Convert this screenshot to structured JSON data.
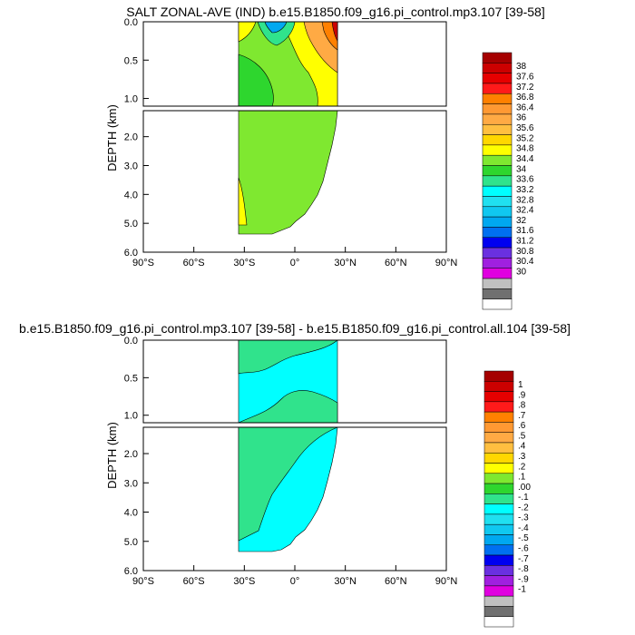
{
  "chart_data": [
    {
      "type": "heatmap",
      "title": "SALT ZONAL-AVE (IND) b.e15.B1850.f09_g16.pi_control.mp3.107 [39-58]",
      "ylabel": "DEPTH (km)",
      "x_ticks": [
        "90°S",
        "60°S",
        "30°S",
        "0°",
        "30°N",
        "60°N",
        "90°N"
      ],
      "x_range": [
        -90,
        90
      ],
      "y_upper_ticks": [
        "0.0",
        "0.5",
        "1.0"
      ],
      "y_upper_range": [
        0,
        1.1
      ],
      "y_lower_ticks": [
        "2.0",
        "3.0",
        "4.0",
        "5.0",
        "6.0"
      ],
      "y_lower_range": [
        1.1,
        6.0
      ],
      "colorbar_labels": [
        "38",
        "37.6",
        "37.2",
        "36.8",
        "36.4",
        "36",
        "35.6",
        "35.2",
        "34.8",
        "34.4",
        "34",
        "33.6",
        "33.2",
        "32.8",
        "32.4",
        "32",
        "31.6",
        "31.2",
        "30.8",
        "30.4",
        "30"
      ],
      "colorbar_colors": [
        "#a50000",
        "#cc0000",
        "#e60000",
        "#ff1a1a",
        "#ff8000",
        "#ff9933",
        "#ffaa44",
        "#ffbf40",
        "#ffd700",
        "#ffff00",
        "#7fe830",
        "#2ed62e",
        "#30e38c",
        "#00ffff",
        "#20e0f0",
        "#10c8f0",
        "#00a8f0",
        "#0070f0",
        "#0000f0",
        "#6a30e0",
        "#a020e0",
        "#e000e0",
        "#c0c0c0",
        "#707070",
        "#ffffff"
      ]
    },
    {
      "type": "heatmap",
      "title": "b.e15.B1850.f09_g16.pi_control.mp3.107 [39-58] - b.e15.B1850.f09_g16.pi_control.all.104 [39-58]",
      "ylabel": "DEPTH (km)",
      "x_ticks": [
        "90°S",
        "60°S",
        "30°S",
        "0°",
        "30°N",
        "60°N",
        "90°N"
      ],
      "x_range": [
        -90,
        90
      ],
      "y_upper_ticks": [
        "0.0",
        "0.5",
        "1.0"
      ],
      "y_upper_range": [
        0,
        1.1
      ],
      "y_lower_ticks": [
        "2.0",
        "3.0",
        "4.0",
        "5.0",
        "6.0"
      ],
      "y_lower_range": [
        1.1,
        6.0
      ],
      "colorbar_labels": [
        "1",
        ".9",
        ".8",
        ".7",
        ".6",
        ".5",
        ".4",
        ".3",
        ".2",
        ".1",
        ".00",
        "-.1",
        "-.2",
        "-.3",
        "-.4",
        "-.5",
        "-.6",
        "-.7",
        "-.8",
        "-.9",
        "-1"
      ],
      "colorbar_colors": [
        "#a50000",
        "#cc0000",
        "#e60000",
        "#ff1a1a",
        "#ff8000",
        "#ff9933",
        "#ffaa44",
        "#ffbf40",
        "#ffd700",
        "#ffff00",
        "#7fe830",
        "#2ed62e",
        "#30e38c",
        "#00ffff",
        "#20e0f0",
        "#10c8f0",
        "#00a8f0",
        "#0070f0",
        "#0000f0",
        "#6a30e0",
        "#a020e0",
        "#e000e0",
        "#c0c0c0",
        "#707070",
        "#ffffff"
      ]
    }
  ]
}
